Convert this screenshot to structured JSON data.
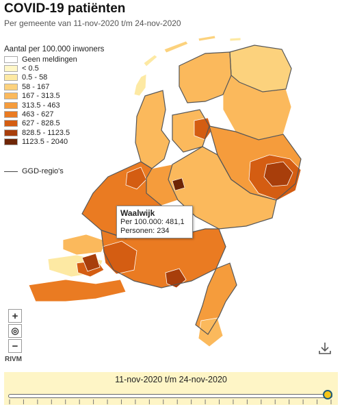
{
  "header": {
    "title": "COVID-19 patiënten",
    "subtitle": "Per gemeente van 11-nov-2020 t/m 24-nov-2020"
  },
  "legend": {
    "title": "Aantal per 100.000 inwoners",
    "items": [
      {
        "label": "Geen meldingen",
        "color": "#ffffff"
      },
      {
        "label": "< 0.5",
        "color": "#fff7c7"
      },
      {
        "label": "0.5 - 58",
        "color": "#fde9a3"
      },
      {
        "label": "58 - 167",
        "color": "#fcd27d"
      },
      {
        "label": "167 - 313.5",
        "color": "#fbb95c"
      },
      {
        "label": "313.5 - 463",
        "color": "#f59c3c"
      },
      {
        "label": "463 - 627",
        "color": "#ea7b22"
      },
      {
        "label": "627 - 828.5",
        "color": "#d45d12"
      },
      {
        "label": "828.5 - 1123.5",
        "color": "#a83e0b"
      },
      {
        "label": "1123.5 - 2040",
        "color": "#6e2506"
      }
    ],
    "ggd_label": "GGD-regio's"
  },
  "tooltip": {
    "name": "Waalwijk",
    "rate_line": "Per 100.000: 481,1",
    "persons_line": "Personen: 234"
  },
  "controls": {
    "zoom_in": "+",
    "reset": "◎",
    "zoom_out": "−"
  },
  "source": "RIVM",
  "timebar": {
    "label": "11-nov-2020 t/m 24-nov-2020",
    "position_fraction": 1.0
  }
}
